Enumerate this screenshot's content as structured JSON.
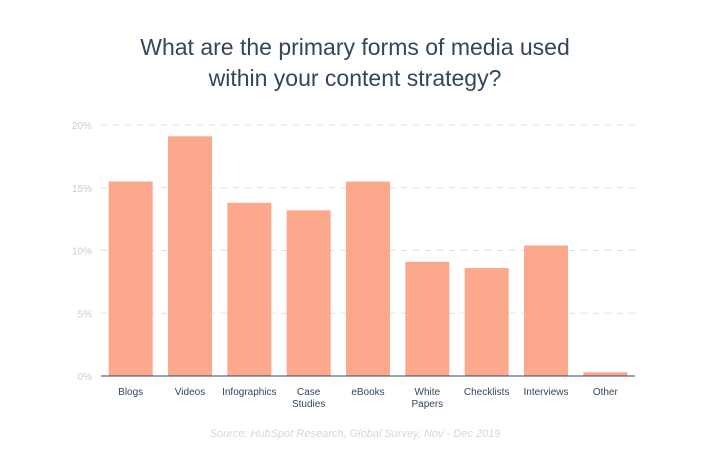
{
  "title_lines": [
    "What are the primary forms of media used",
    "within your content strategy?"
  ],
  "source": "Source: HubSpot Research, Global Survey, Nov - Dec 2019",
  "colors": {
    "bar": "#fca88d",
    "title": "#33475b",
    "tick": "#c3cfdc",
    "grid": "#dde3ea",
    "axis": "#33475b",
    "label": "#33475b"
  },
  "chart_data": {
    "type": "bar",
    "title": "What are the primary forms of media used within your content strategy?",
    "categories": [
      [
        "Blogs"
      ],
      [
        "Videos"
      ],
      [
        "Infographics"
      ],
      [
        "Case",
        "Studies"
      ],
      [
        "eBooks"
      ],
      [
        "White",
        "Papers"
      ],
      [
        "Checklists"
      ],
      [
        "Interviews"
      ],
      [
        "Other"
      ]
    ],
    "values": [
      15.5,
      19.1,
      13.8,
      13.2,
      15.5,
      9.1,
      8.6,
      10.4,
      0.3
    ],
    "ylim": [
      0,
      20
    ],
    "yticks": [
      "0%",
      "5%",
      "10%",
      "15%",
      "20%"
    ],
    "ytick_values": [
      0,
      5,
      10,
      15,
      20
    ],
    "grid": true,
    "legend": "none"
  }
}
